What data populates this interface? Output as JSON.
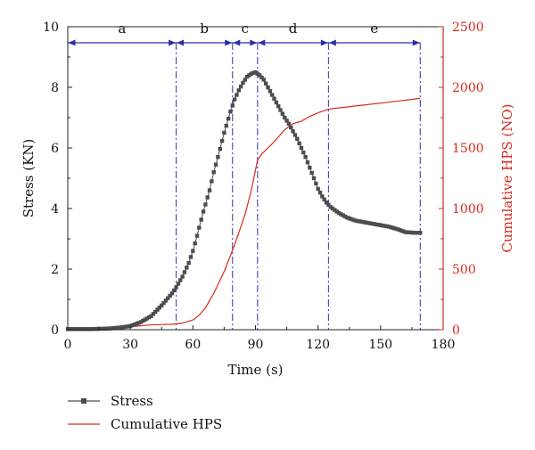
{
  "chart_data": {
    "type": "line",
    "xlabel": "Time (s)",
    "ylabel": "Stress (KN)",
    "y2label": "Cumulative HPS (NO)",
    "xlim": [
      0,
      180
    ],
    "ylim": [
      0,
      10
    ],
    "y2lim": [
      0,
      2500
    ],
    "xticks": [
      "0",
      "30",
      "60",
      "90",
      "120",
      "150",
      "180"
    ],
    "yticks": [
      "0",
      "2",
      "4",
      "6",
      "8",
      "10"
    ],
    "y2ticks": [
      "0",
      "500",
      "1000",
      "1500",
      "2000",
      "2500"
    ],
    "colors": {
      "stress": "#4d4d4d",
      "hps": "#d62a1e",
      "stage": "#2b2fa8"
    },
    "stage_boundaries": [
      0,
      52,
      79,
      91,
      125,
      169
    ],
    "stages": [
      "a",
      "b",
      "c",
      "d",
      "e"
    ],
    "legend_position": "bottom-left",
    "series": [
      {
        "name": "Stress",
        "axis": "left",
        "marker": "square",
        "x": [
          0,
          10,
          20,
          25,
          30,
          35,
          40,
          45,
          50,
          52,
          55,
          58,
          60,
          62,
          65,
          68,
          70,
          72,
          75,
          78,
          80,
          82,
          84,
          86,
          88,
          90,
          92,
          94,
          96,
          98,
          100,
          102,
          104,
          106,
          108,
          110,
          112,
          114,
          116,
          118,
          120,
          122,
          124,
          126,
          130,
          134,
          138,
          142,
          146,
          150,
          154,
          158,
          162,
          166,
          169
        ],
        "y": [
          0.02,
          0.02,
          0.04,
          0.07,
          0.12,
          0.25,
          0.45,
          0.8,
          1.2,
          1.4,
          1.75,
          2.2,
          2.6,
          3.1,
          3.9,
          4.6,
          5.2,
          5.7,
          6.5,
          7.2,
          7.6,
          7.9,
          8.15,
          8.35,
          8.45,
          8.5,
          8.4,
          8.25,
          8.0,
          7.75,
          7.5,
          7.25,
          7.0,
          6.8,
          6.55,
          6.3,
          6.0,
          5.7,
          5.35,
          5.0,
          4.65,
          4.4,
          4.2,
          4.05,
          3.85,
          3.7,
          3.6,
          3.55,
          3.5,
          3.45,
          3.4,
          3.32,
          3.22,
          3.2,
          3.2
        ]
      },
      {
        "name": "Cumulative HPS",
        "axis": "right",
        "x": [
          0,
          20,
          30,
          40,
          50,
          55,
          60,
          63,
          66,
          70,
          75,
          80,
          85,
          88,
          91,
          93,
          96,
          100,
          104,
          108,
          112,
          116,
          120,
          125,
          130,
          140,
          150,
          160,
          165,
          169
        ],
        "y": [
          0,
          15,
          25,
          40,
          45,
          55,
          80,
          120,
          180,
          300,
          480,
          700,
          950,
          1150,
          1400,
          1450,
          1500,
          1570,
          1650,
          1700,
          1720,
          1760,
          1790,
          1820,
          1830,
          1850,
          1870,
          1890,
          1900,
          1910
        ]
      }
    ]
  }
}
